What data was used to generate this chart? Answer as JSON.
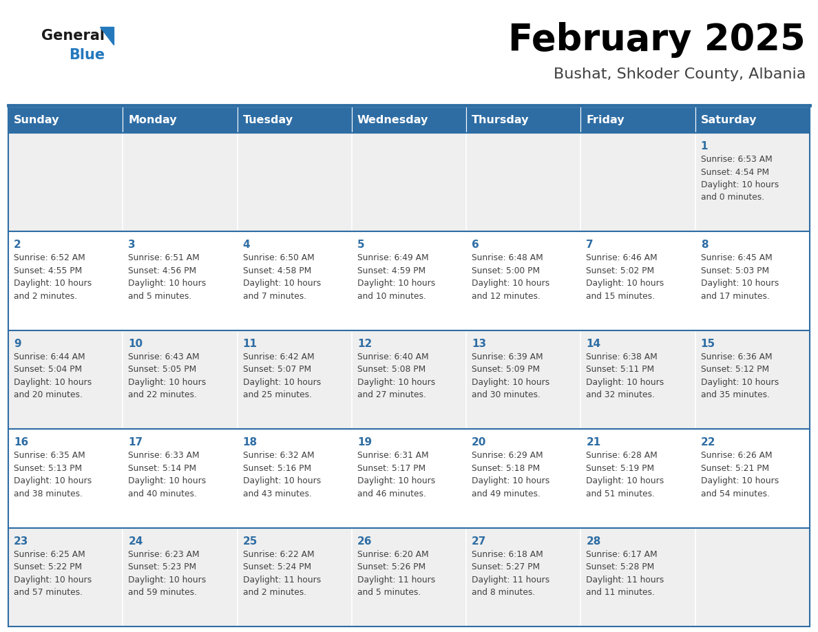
{
  "title": "February 2025",
  "subtitle": "Bushat, Shkoder County, Albania",
  "days_of_week": [
    "Sunday",
    "Monday",
    "Tuesday",
    "Wednesday",
    "Thursday",
    "Friday",
    "Saturday"
  ],
  "header_bg": "#2E6DA4",
  "header_text": "#FFFFFF",
  "cell_bg_white": "#FFFFFF",
  "cell_bg_gray": "#EFEFEF",
  "border_color": "#2E6DA4",
  "day_num_color": "#2E6DA4",
  "cell_text_color": "#404040",
  "title_color": "#000000",
  "subtitle_color": "#404040",
  "logo_general_color": "#1a1a1a",
  "logo_blue_color": "#2479BD",
  "calendar_data": [
    [
      null,
      null,
      null,
      null,
      null,
      null,
      {
        "day": 1,
        "sunrise": "6:53 AM",
        "sunset": "4:54 PM",
        "daylight": "10 hours and 0 minutes."
      }
    ],
    [
      {
        "day": 2,
        "sunrise": "6:52 AM",
        "sunset": "4:55 PM",
        "daylight": "10 hours and 2 minutes."
      },
      {
        "day": 3,
        "sunrise": "6:51 AM",
        "sunset": "4:56 PM",
        "daylight": "10 hours and 5 minutes."
      },
      {
        "day": 4,
        "sunrise": "6:50 AM",
        "sunset": "4:58 PM",
        "daylight": "10 hours and 7 minutes."
      },
      {
        "day": 5,
        "sunrise": "6:49 AM",
        "sunset": "4:59 PM",
        "daylight": "10 hours and 10 minutes."
      },
      {
        "day": 6,
        "sunrise": "6:48 AM",
        "sunset": "5:00 PM",
        "daylight": "10 hours and 12 minutes."
      },
      {
        "day": 7,
        "sunrise": "6:46 AM",
        "sunset": "5:02 PM",
        "daylight": "10 hours and 15 minutes."
      },
      {
        "day": 8,
        "sunrise": "6:45 AM",
        "sunset": "5:03 PM",
        "daylight": "10 hours and 17 minutes."
      }
    ],
    [
      {
        "day": 9,
        "sunrise": "6:44 AM",
        "sunset": "5:04 PM",
        "daylight": "10 hours and 20 minutes."
      },
      {
        "day": 10,
        "sunrise": "6:43 AM",
        "sunset": "5:05 PM",
        "daylight": "10 hours and 22 minutes."
      },
      {
        "day": 11,
        "sunrise": "6:42 AM",
        "sunset": "5:07 PM",
        "daylight": "10 hours and 25 minutes."
      },
      {
        "day": 12,
        "sunrise": "6:40 AM",
        "sunset": "5:08 PM",
        "daylight": "10 hours and 27 minutes."
      },
      {
        "day": 13,
        "sunrise": "6:39 AM",
        "sunset": "5:09 PM",
        "daylight": "10 hours and 30 minutes."
      },
      {
        "day": 14,
        "sunrise": "6:38 AM",
        "sunset": "5:11 PM",
        "daylight": "10 hours and 32 minutes."
      },
      {
        "day": 15,
        "sunrise": "6:36 AM",
        "sunset": "5:12 PM",
        "daylight": "10 hours and 35 minutes."
      }
    ],
    [
      {
        "day": 16,
        "sunrise": "6:35 AM",
        "sunset": "5:13 PM",
        "daylight": "10 hours and 38 minutes."
      },
      {
        "day": 17,
        "sunrise": "6:33 AM",
        "sunset": "5:14 PM",
        "daylight": "10 hours and 40 minutes."
      },
      {
        "day": 18,
        "sunrise": "6:32 AM",
        "sunset": "5:16 PM",
        "daylight": "10 hours and 43 minutes."
      },
      {
        "day": 19,
        "sunrise": "6:31 AM",
        "sunset": "5:17 PM",
        "daylight": "10 hours and 46 minutes."
      },
      {
        "day": 20,
        "sunrise": "6:29 AM",
        "sunset": "5:18 PM",
        "daylight": "10 hours and 49 minutes."
      },
      {
        "day": 21,
        "sunrise": "6:28 AM",
        "sunset": "5:19 PM",
        "daylight": "10 hours and 51 minutes."
      },
      {
        "day": 22,
        "sunrise": "6:26 AM",
        "sunset": "5:21 PM",
        "daylight": "10 hours and 54 minutes."
      }
    ],
    [
      {
        "day": 23,
        "sunrise": "6:25 AM",
        "sunset": "5:22 PM",
        "daylight": "10 hours and 57 minutes."
      },
      {
        "day": 24,
        "sunrise": "6:23 AM",
        "sunset": "5:23 PM",
        "daylight": "10 hours and 59 minutes."
      },
      {
        "day": 25,
        "sunrise": "6:22 AM",
        "sunset": "5:24 PM",
        "daylight": "11 hours and 2 minutes."
      },
      {
        "day": 26,
        "sunrise": "6:20 AM",
        "sunset": "5:26 PM",
        "daylight": "11 hours and 5 minutes."
      },
      {
        "day": 27,
        "sunrise": "6:18 AM",
        "sunset": "5:27 PM",
        "daylight": "11 hours and 8 minutes."
      },
      {
        "day": 28,
        "sunrise": "6:17 AM",
        "sunset": "5:28 PM",
        "daylight": "11 hours and 11 minutes."
      },
      null
    ]
  ],
  "figsize": [
    11.88,
    9.18
  ],
  "dpi": 100
}
